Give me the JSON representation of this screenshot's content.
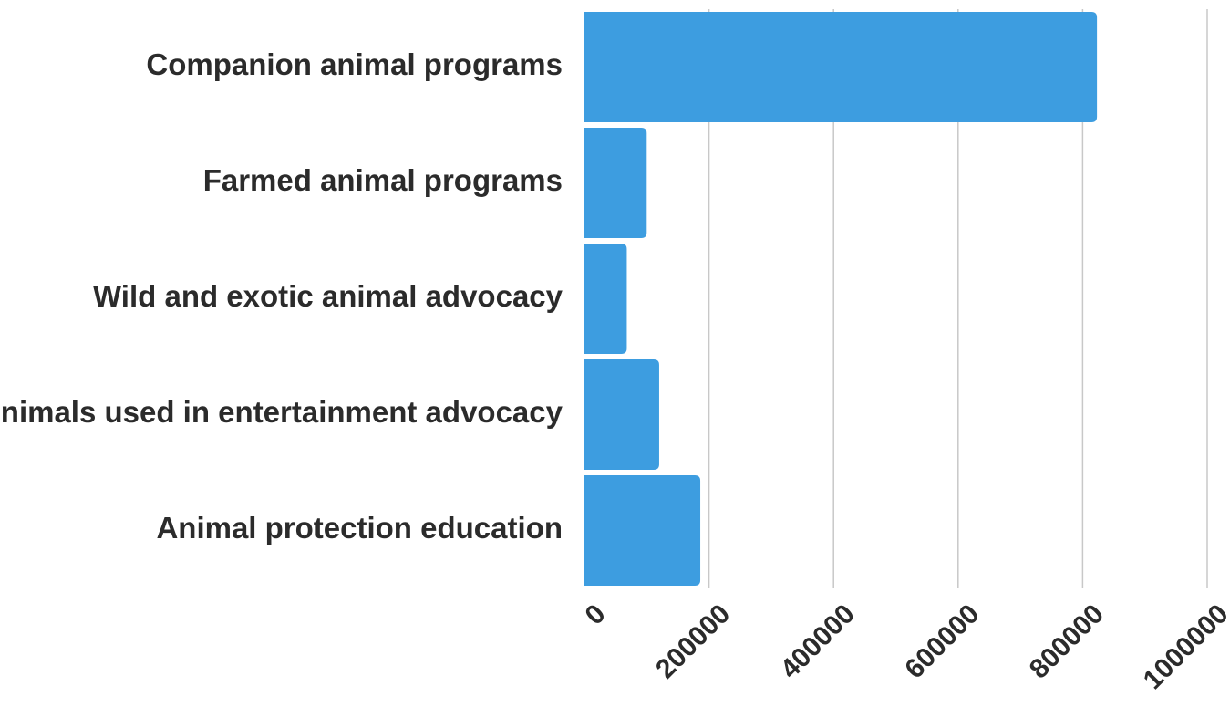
{
  "chart_data": {
    "type": "bar",
    "orientation": "horizontal",
    "title": "",
    "xlabel": "",
    "ylabel": "",
    "categories": [
      "Companion animal programs",
      "Farmed animal programs",
      "Wild and exotic animal advocacy",
      "Animals used in entertainment advocacy",
      "Animal protection education"
    ],
    "values": [
      823000,
      100000,
      68000,
      120000,
      186000
    ],
    "xlim": [
      0,
      1000000
    ],
    "ticks": [
      "0",
      "200000",
      "400000",
      "600000",
      "800000",
      "1000000"
    ],
    "tick_values": [
      0,
      200000,
      400000,
      600000,
      800000,
      1000000
    ],
    "grid": true,
    "colors": {
      "bar": "#3d9de0",
      "grid": "#c8c8c8",
      "text": "#2b2b2b"
    }
  }
}
